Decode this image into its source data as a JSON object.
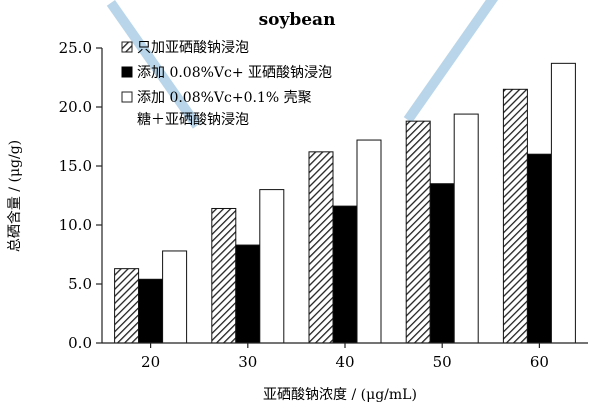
{
  "chart_data": {
    "type": "bar",
    "title": "soybean",
    "xlabel": "亚硒酸钠浓度 / (μg/mL)",
    "ylabel": "总硒含量 / (μg/g)",
    "ylim": [
      0,
      25
    ],
    "yticks": [
      "0.0",
      "5.0",
      "10.0",
      "15.0",
      "20.0",
      "25.0"
    ],
    "categories": [
      "20",
      "30",
      "40",
      "50",
      "60"
    ],
    "series": [
      {
        "name": "只加亚硒酸钠浸泡",
        "values": [
          6.3,
          11.4,
          16.2,
          18.8,
          21.5
        ],
        "pattern": "hatch"
      },
      {
        "name": "添加 0.08%Vc+ 亚硒酸钠浸泡",
        "values": [
          5.4,
          8.3,
          11.6,
          13.5,
          16.0
        ],
        "pattern": "solid"
      },
      {
        "name": "添加 0.08%Vc+0.1% 壳聚糖＋亚硒酸钠浸泡",
        "values": [
          7.8,
          13.0,
          17.2,
          19.4,
          23.7
        ],
        "pattern": "empty"
      }
    ],
    "legend": "top-left",
    "grid": false
  },
  "legend_display": {
    "line1": "只加亚硒酸钠浸泡",
    "line2": "添加 0.08%Vc+ 亚硒酸钠浸泡",
    "line3a": "添加 0.08%Vc+0.1% 壳聚",
    "line3b": "糖＋亚硒酸钠浸泡"
  }
}
